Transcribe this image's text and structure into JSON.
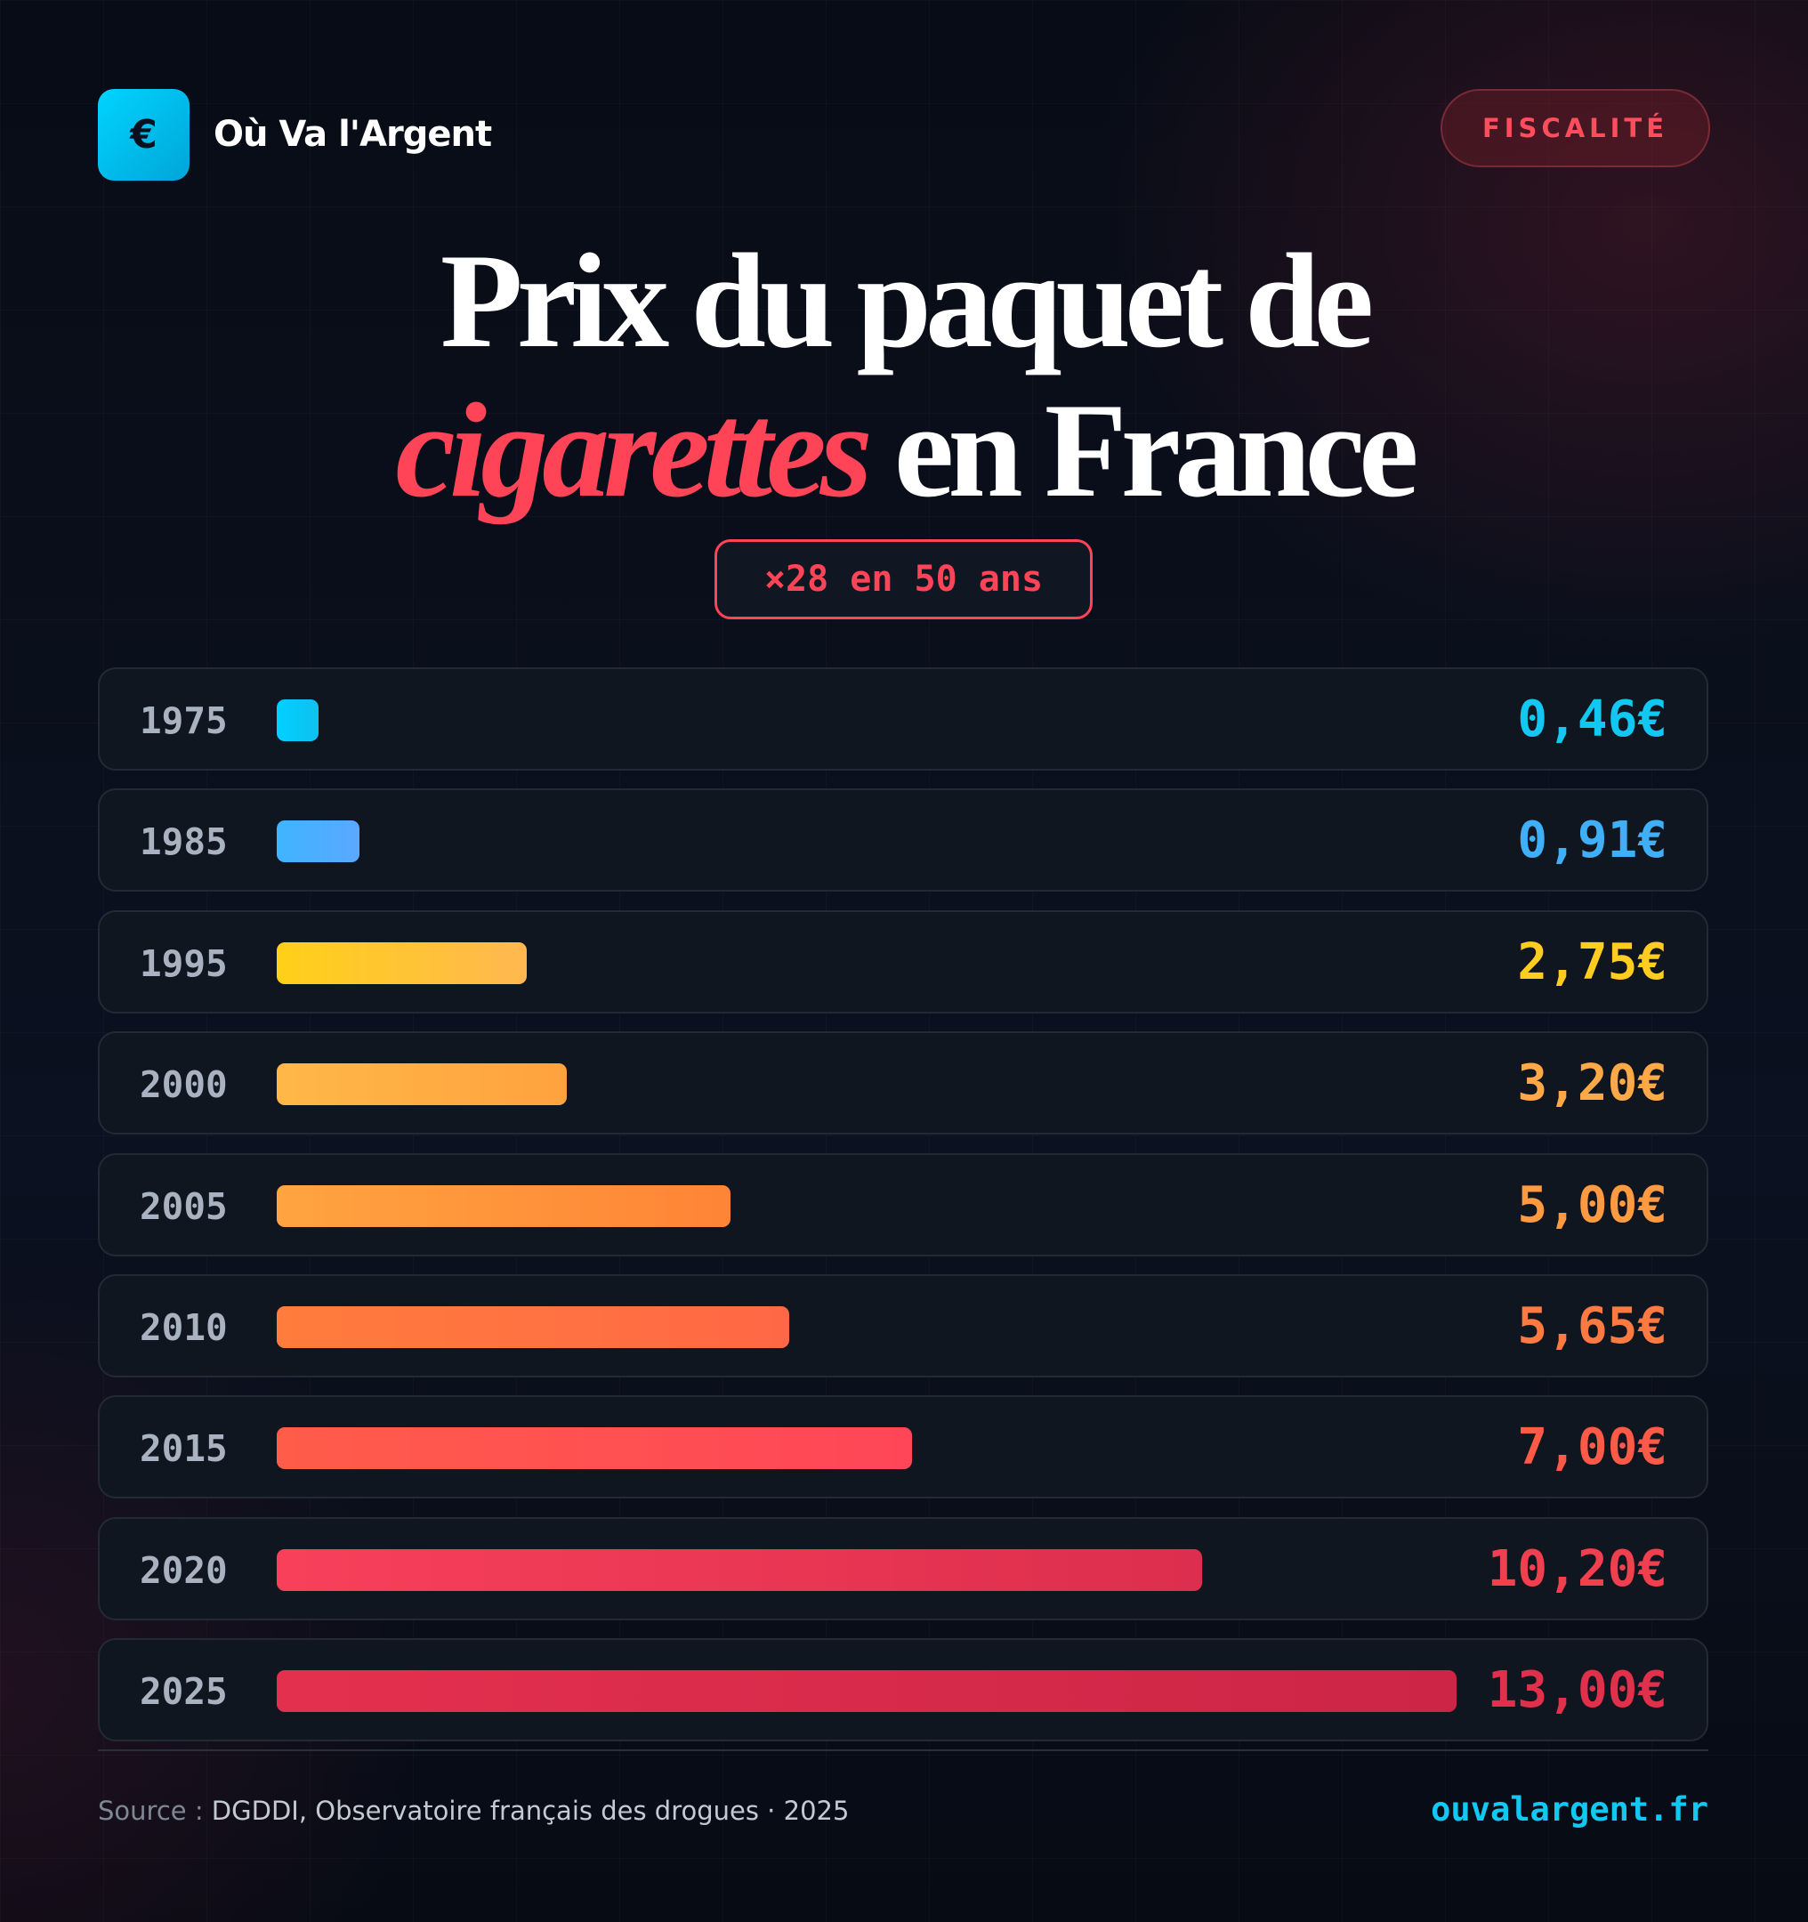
{
  "brand": {
    "name": "Où Va l'Argent",
    "logo_icon": "euro-icon",
    "logo_symbol": "€"
  },
  "category": "FISCALITÉ",
  "title": {
    "line1": "Prix du paquet de",
    "highlight": "cigarettes",
    "line2_rest": " en France"
  },
  "badge": "×28 en 50 ans",
  "chart_data": {
    "type": "bar",
    "orientation": "horizontal",
    "categories": [
      "1975",
      "1985",
      "1995",
      "2000",
      "2005",
      "2010",
      "2015",
      "2020",
      "2025"
    ],
    "values": [
      0.46,
      0.91,
      2.75,
      3.2,
      5.0,
      5.65,
      7.0,
      10.2,
      13.0
    ],
    "labels": [
      "0,46€",
      "0,91€",
      "2,75€",
      "3,20€",
      "5,00€",
      "5,65€",
      "7,00€",
      "10,20€",
      "13,00€"
    ],
    "xlim": [
      0,
      13
    ],
    "colors": [
      [
        "#00d0ff",
        "#10c0f0"
      ],
      [
        "#40b4ff",
        "#5aa8ff"
      ],
      [
        "#ffd018",
        "#ffb850"
      ],
      [
        "#ffb848",
        "#ffa23e"
      ],
      [
        "#ffa440",
        "#ff8436"
      ],
      [
        "#ff7c3c",
        "#ff6846"
      ],
      [
        "#ff5c4a",
        "#ff4658"
      ],
      [
        "#f8405a",
        "#dc2e4e"
      ],
      [
        "#e4304f",
        "#cc2546"
      ]
    ],
    "value_colors": [
      "#12c8f2",
      "#3fb0f8",
      "#ffcc20",
      "#ffa848",
      "#ff9a40",
      "#ff7a40",
      "#ff5a48",
      "#f0404f",
      "#e0304c"
    ]
  },
  "footer": {
    "source_label": "Source :",
    "source": " DGDDI, Observatoire français des drogues · 2025",
    "site": "ouvalargent.fr"
  }
}
